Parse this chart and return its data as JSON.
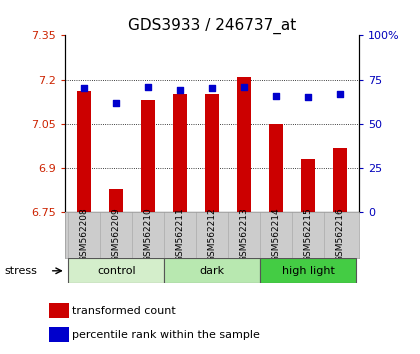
{
  "title": "GDS3933 / 246737_at",
  "samples": [
    "GSM562208",
    "GSM562209",
    "GSM562210",
    "GSM562211",
    "GSM562212",
    "GSM562213",
    "GSM562214",
    "GSM562215",
    "GSM562216"
  ],
  "transformed_counts": [
    7.16,
    6.83,
    7.13,
    7.15,
    7.15,
    7.21,
    7.05,
    6.93,
    6.97
  ],
  "percentile_ranks": [
    70,
    62,
    71,
    69,
    70,
    71,
    66,
    65,
    67
  ],
  "ylim": [
    6.75,
    7.35
  ],
  "ylim_right": [
    0,
    100
  ],
  "yticks_left": [
    6.75,
    6.9,
    7.05,
    7.2,
    7.35
  ],
  "yticks_right": [
    0,
    25,
    50,
    75,
    100
  ],
  "ytick_labels_left": [
    "6.75",
    "6.9",
    "7.05",
    "7.2",
    "7.35"
  ],
  "ytick_labels_right": [
    "0",
    "25",
    "50",
    "75",
    "100%"
  ],
  "groups": [
    {
      "label": "control",
      "indices": [
        0,
        1,
        2
      ],
      "color": "#d4eecb"
    },
    {
      "label": "dark",
      "indices": [
        3,
        4,
        5
      ],
      "color": "#b8e8b0"
    },
    {
      "label": "high light",
      "indices": [
        6,
        7,
        8
      ],
      "color": "#44cc44"
    }
  ],
  "stress_label": "stress",
  "bar_color": "#cc0000",
  "dot_color": "#0000cc",
  "bar_width": 0.45,
  "base_value": 6.75,
  "left_tick_color": "#cc2200",
  "right_tick_color": "#0000bb",
  "grid_color": "#000000",
  "background_plot": "#ffffff",
  "background_label": "#cccccc"
}
